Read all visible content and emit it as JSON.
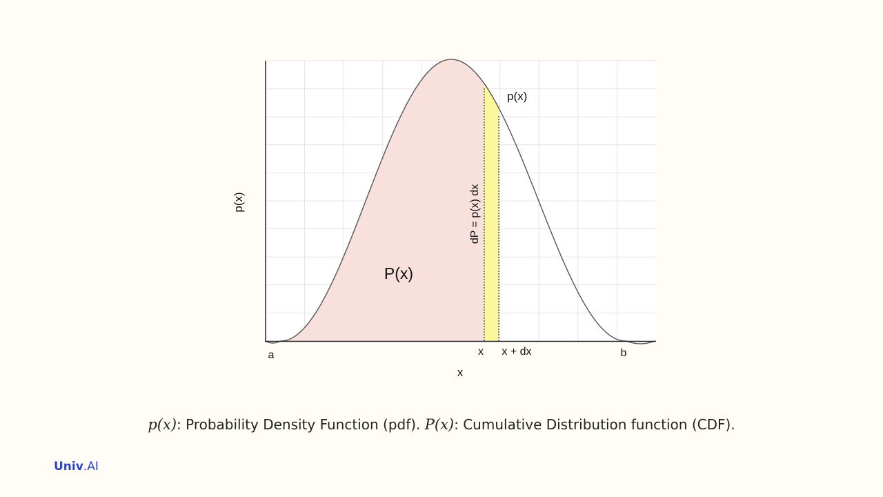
{
  "diagram": {
    "y_axis_label": "p(x)",
    "x_axis_label": "x",
    "tick_a": "a",
    "tick_x": "x",
    "tick_x_dx": "x + dx",
    "tick_b": "b",
    "curve_label": "p(x)",
    "area_label": "P(x)",
    "strip_label": "dP = p(x) dx",
    "colors": {
      "area_fill": "#f8e0dc",
      "strip_fill": "#fbf79a",
      "curve": "#555555",
      "grid": "#e4e4e4",
      "axis": "#222222"
    }
  },
  "caption": {
    "pdf_math": "p(x)",
    "pdf_text": ": Probability Density Function (pdf). ",
    "cdf_math": "P(x)",
    "cdf_text": ": Cumulative Distribution function (CDF)."
  },
  "brand": {
    "part1": "Univ",
    "part2": ".AI"
  }
}
